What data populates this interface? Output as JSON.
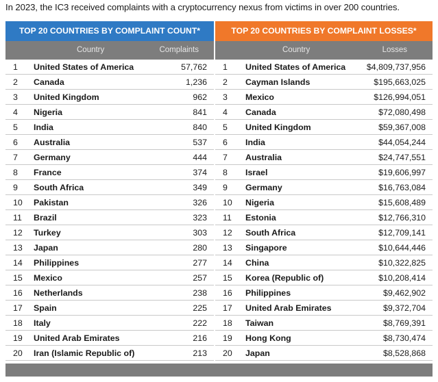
{
  "intro": "In 2023, the IC3 received complaints with a cryptocurrency nexus from victims in over 200 countries.",
  "left_table": {
    "title": "TOP 20 COUNTRIES BY COMPLAINT COUNT*",
    "col_country": "Country",
    "col_value": "Complaints",
    "rows": [
      {
        "rank": "1",
        "country": "United States of America",
        "value": "57,762"
      },
      {
        "rank": "2",
        "country": "Canada",
        "value": "1,236"
      },
      {
        "rank": "3",
        "country": "United Kingdom",
        "value": "962"
      },
      {
        "rank": "4",
        "country": "Nigeria",
        "value": "841"
      },
      {
        "rank": "5",
        "country": "India",
        "value": "840"
      },
      {
        "rank": "6",
        "country": "Australia",
        "value": "537"
      },
      {
        "rank": "7",
        "country": "Germany",
        "value": "444"
      },
      {
        "rank": "8",
        "country": "France",
        "value": "374"
      },
      {
        "rank": "9",
        "country": "South Africa",
        "value": "349"
      },
      {
        "rank": "10",
        "country": "Pakistan",
        "value": "326"
      },
      {
        "rank": "11",
        "country": "Brazil",
        "value": "323"
      },
      {
        "rank": "12",
        "country": "Turkey",
        "value": "303"
      },
      {
        "rank": "13",
        "country": "Japan",
        "value": "280"
      },
      {
        "rank": "14",
        "country": "Philippines",
        "value": "277"
      },
      {
        "rank": "15",
        "country": "Mexico",
        "value": "257"
      },
      {
        "rank": "16",
        "country": "Netherlands",
        "value": "238"
      },
      {
        "rank": "17",
        "country": "Spain",
        "value": "225"
      },
      {
        "rank": "18",
        "country": "Italy",
        "value": "222"
      },
      {
        "rank": "19",
        "country": "United Arab Emirates",
        "value": "216"
      },
      {
        "rank": "20",
        "country": "Iran (Islamic Republic of)",
        "value": "213"
      }
    ]
  },
  "right_table": {
    "title": "TOP 20 COUNTRIES BY COMPLAINT LOSSES*",
    "col_country": "Country",
    "col_value": "Losses",
    "rows": [
      {
        "rank": "1",
        "country": "United States of America",
        "value": "$4,809,737,956"
      },
      {
        "rank": "2",
        "country": "Cayman Islands",
        "value": "$195,663,025"
      },
      {
        "rank": "3",
        "country": "Mexico",
        "value": "$126,994,051"
      },
      {
        "rank": "4",
        "country": "Canada",
        "value": "$72,080,498"
      },
      {
        "rank": "5",
        "country": "United Kingdom",
        "value": "$59,367,008"
      },
      {
        "rank": "6",
        "country": "India",
        "value": "$44,054,244"
      },
      {
        "rank": "7",
        "country": "Australia",
        "value": "$24,747,551"
      },
      {
        "rank": "8",
        "country": "Israel",
        "value": "$19,606,997"
      },
      {
        "rank": "9",
        "country": "Germany",
        "value": "$16,763,084"
      },
      {
        "rank": "10",
        "country": "Nigeria",
        "value": "$15,608,489"
      },
      {
        "rank": "11",
        "country": "Estonia",
        "value": "$12,766,310"
      },
      {
        "rank": "12",
        "country": "South Africa",
        "value": "$12,709,141"
      },
      {
        "rank": "13",
        "country": "Singapore",
        "value": "$10,644,446"
      },
      {
        "rank": "14",
        "country": "China",
        "value": "$10,322,825"
      },
      {
        "rank": "15",
        "country": "Korea (Republic of)",
        "value": "$10,208,414"
      },
      {
        "rank": "16",
        "country": "Philippines",
        "value": "$9,462,902"
      },
      {
        "rank": "17",
        "country": "United Arab Emirates",
        "value": "$9,372,704"
      },
      {
        "rank": "18",
        "country": "Taiwan",
        "value": "$8,769,391"
      },
      {
        "rank": "19",
        "country": "Hong Kong",
        "value": "$8,730,474"
      },
      {
        "rank": "20",
        "country": "Japan",
        "value": "$8,528,868"
      }
    ]
  },
  "colors": {
    "left_header": "#2f7ac4",
    "right_header": "#f0782a",
    "column_header": "#7d7d7d"
  }
}
